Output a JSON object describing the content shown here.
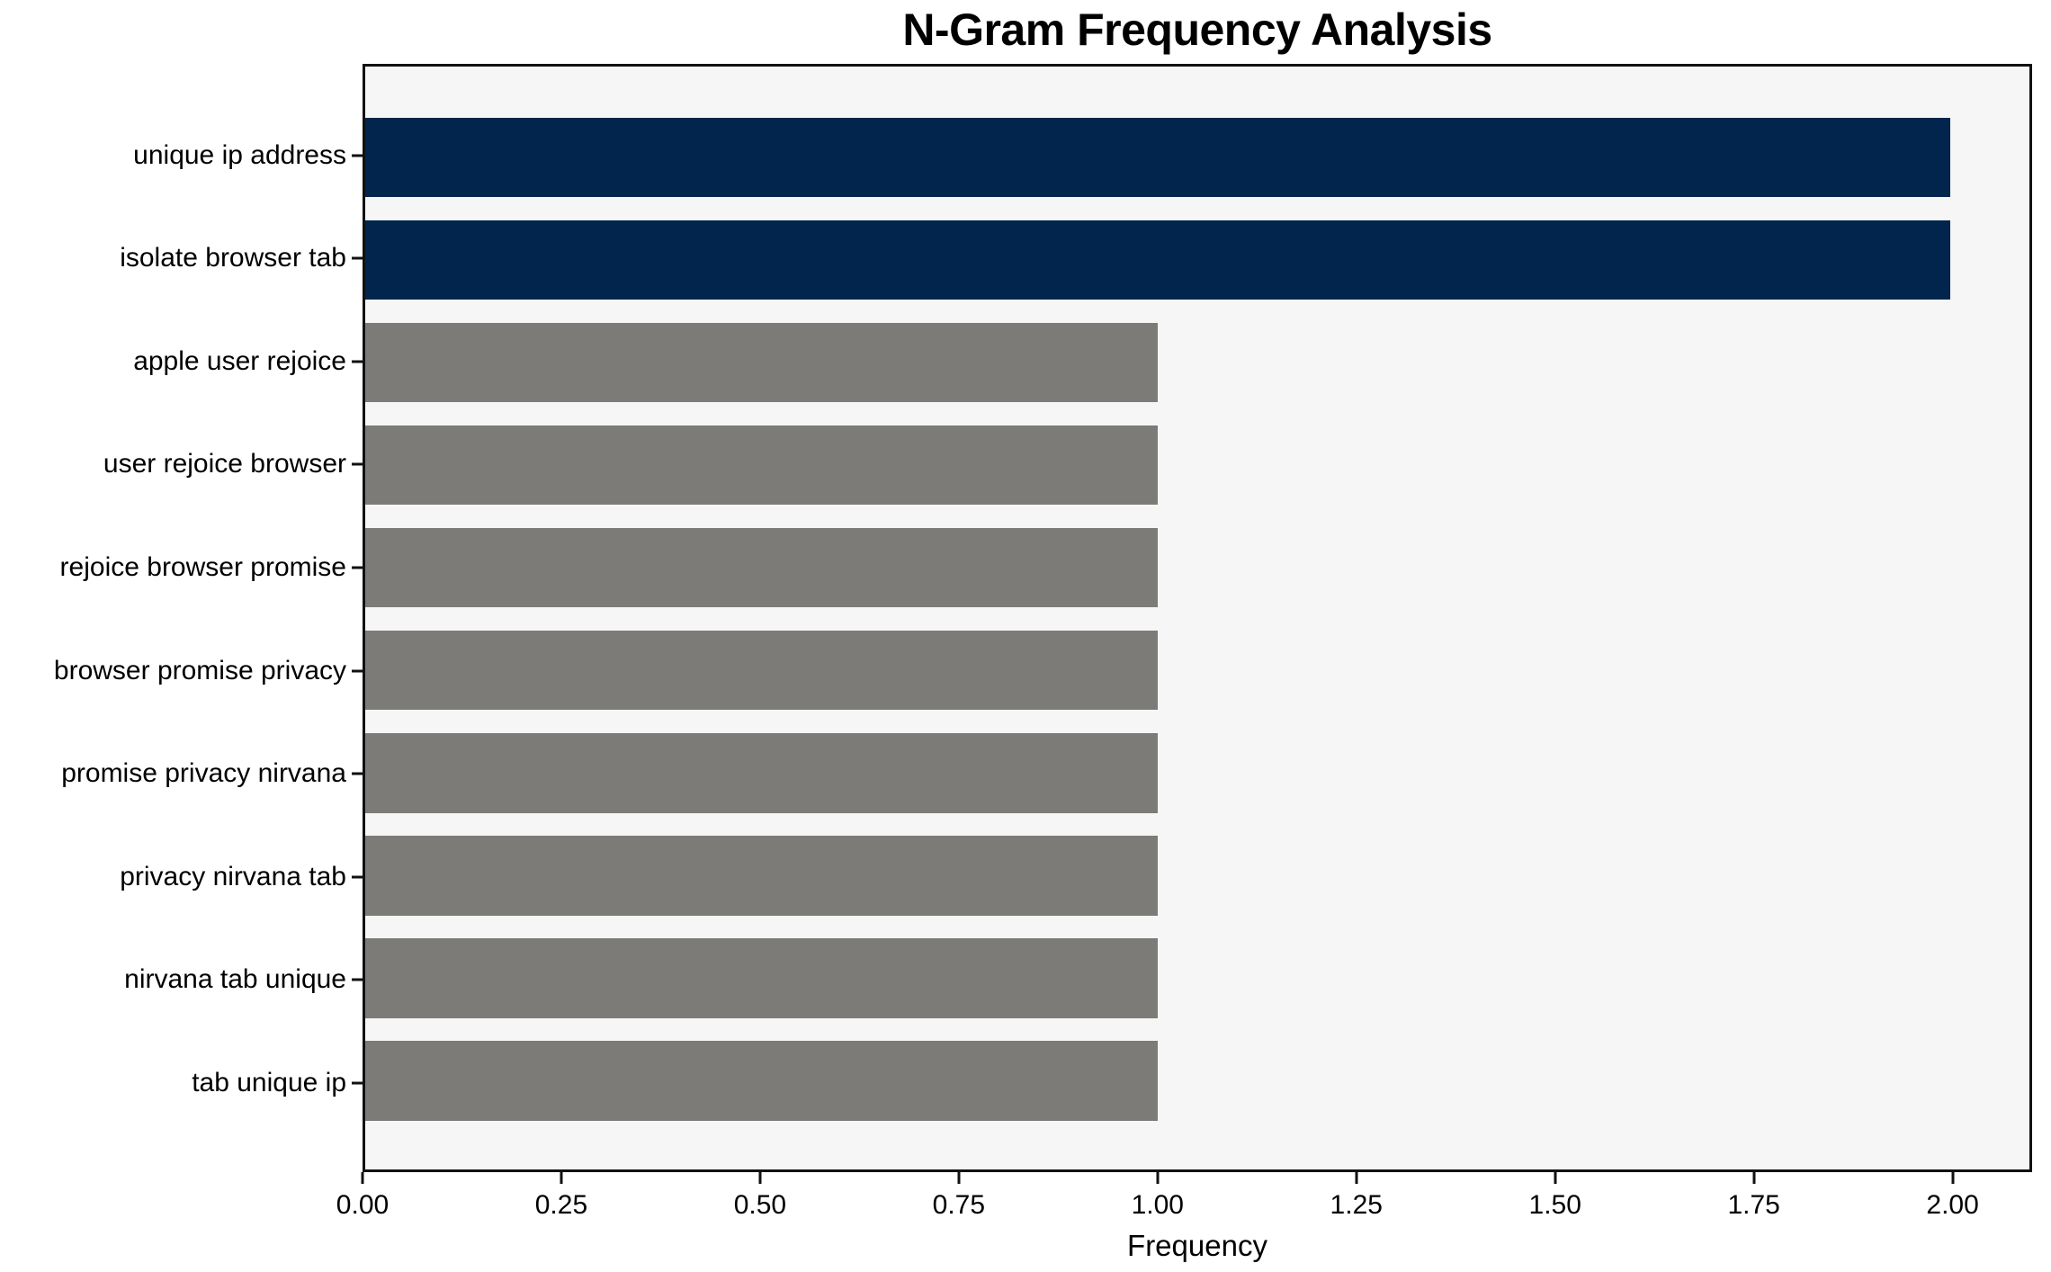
{
  "chart_data": {
    "type": "bar",
    "orientation": "horizontal",
    "title": "N-Gram Frequency Analysis",
    "xlabel": "Frequency",
    "ylabel": "",
    "categories": [
      "unique ip address",
      "isolate browser tab",
      "apple user rejoice",
      "user rejoice browser",
      "rejoice browser promise",
      "browser promise privacy",
      "promise privacy nirvana",
      "privacy nirvana tab",
      "nirvana tab unique",
      "tab unique ip"
    ],
    "values": [
      2,
      2,
      1,
      1,
      1,
      1,
      1,
      1,
      1,
      1
    ],
    "bar_colors": [
      "#02254d",
      "#02254d",
      "#7c7b77",
      "#7c7b77",
      "#7c7b77",
      "#7c7b77",
      "#7c7b77",
      "#7c7b77",
      "#7c7b77",
      "#7c7b77"
    ],
    "xlim": [
      0,
      2.1
    ],
    "xtick_values": [
      0,
      0.25,
      0.5,
      0.75,
      1.0,
      1.25,
      1.5,
      1.75,
      2.0
    ],
    "xtick_labels": [
      "0.00",
      "0.25",
      "0.50",
      "0.75",
      "1.00",
      "1.25",
      "1.50",
      "1.75",
      "2.00"
    ],
    "grid": false,
    "legend": null,
    "colors": {
      "highlight": "#02254d",
      "default": "#7c7b77",
      "plot_background": "#f7f6f6",
      "figure_background": "#ffffff",
      "spine": "#111111",
      "text": "#000000"
    }
  }
}
